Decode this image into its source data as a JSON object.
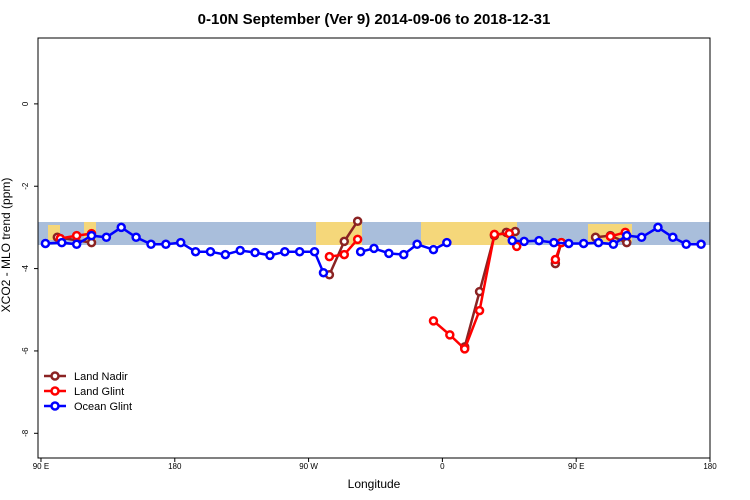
{
  "chart_data": {
    "type": "line",
    "title": "0-10N September (Ver 9)   2014-09-06 to 2018-12-31",
    "x_label": "Longitude",
    "y_label": "XCO2 - MLO trend (ppm)",
    "xlim": [
      88,
      540
    ],
    "ylim": [
      -8.6,
      1.6
    ],
    "xticks": [
      {
        "value": 90,
        "label": "90 E"
      },
      180,
      {
        "value": 270,
        "label": "90 W"
      },
      {
        "value": 360,
        "label": "0"
      },
      {
        "value": 450,
        "label": "90 E"
      },
      {
        "value": 540,
        "label": "180"
      }
    ],
    "yticks": [
      0,
      -2,
      -4,
      -6,
      -8
    ],
    "legend": "bottom-left",
    "series": [
      {
        "name": "Land Nadir",
        "color": "#8b2323",
        "x": [
          101,
          124,
          null,
          284,
          294,
          303,
          null,
          375,
          385,
          395,
          403,
          409,
          null,
          436,
          440,
          null,
          463,
          473,
          484
        ],
        "values": [
          -3.24,
          -3.37,
          null,
          -4.15,
          -3.34,
          -2.85,
          null,
          -5.9,
          -4.56,
          -3.2,
          -3.12,
          -3.1,
          null,
          -3.88,
          -3.37,
          null,
          -3.24,
          -3.2,
          -3.37
        ]
      },
      {
        "name": "Land Glint",
        "color": "#ff0000",
        "x": [
          103,
          114,
          124,
          null,
          284,
          294,
          303,
          null,
          354,
          365,
          375,
          385,
          395,
          405,
          410,
          null,
          436,
          440,
          null,
          473,
          483
        ],
        "values": [
          -3.27,
          -3.2,
          -3.15,
          null,
          -3.71,
          -3.66,
          -3.29,
          null,
          -5.27,
          -5.61,
          -5.95,
          -5.02,
          -3.17,
          -3.15,
          -3.46,
          null,
          -3.78,
          -3.37,
          null,
          -3.22,
          -3.12
        ]
      },
      {
        "name": "Ocean Glint",
        "color": "#0000ff",
        "x": [
          93,
          104,
          114,
          124,
          134,
          144,
          154,
          164,
          174,
          184,
          194,
          204,
          214,
          224,
          234,
          244,
          254,
          264,
          274,
          280,
          null,
          305,
          314,
          324,
          334,
          343,
          354,
          363,
          null,
          407,
          415,
          425,
          435,
          445,
          455,
          465,
          475,
          484,
          494,
          505,
          515,
          524,
          534
        ],
        "values": [
          -3.39,
          -3.37,
          -3.41,
          -3.2,
          -3.24,
          -3.0,
          -3.24,
          -3.41,
          -3.41,
          -3.37,
          -3.59,
          -3.59,
          -3.66,
          -3.56,
          -3.61,
          -3.68,
          -3.59,
          -3.59,
          -3.59,
          -4.1,
          null,
          -3.59,
          -3.51,
          -3.63,
          -3.66,
          -3.41,
          -3.54,
          -3.37,
          null,
          -3.32,
          -3.34,
          -3.32,
          -3.37,
          -3.39,
          -3.39,
          -3.37,
          -3.41,
          -3.2,
          -3.24,
          -3.0,
          -3.24,
          -3.41,
          -3.41
        ]
      }
    ]
  }
}
